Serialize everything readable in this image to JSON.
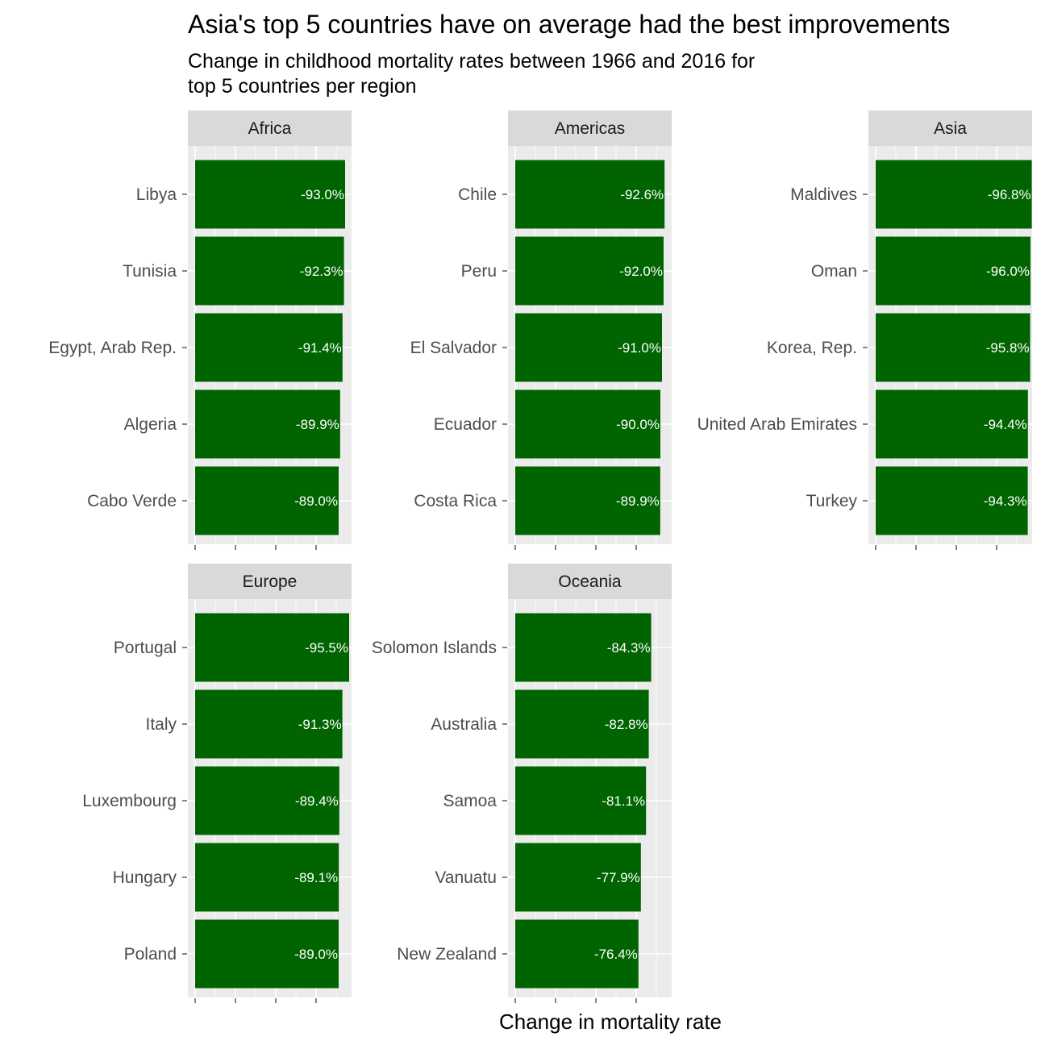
{
  "chart_data": {
    "type": "bar",
    "orientation": "horizontal",
    "title": "Asia's top 5 countries have on average had the best improvements",
    "subtitle_lines": [
      "Change in childhood mortality rates between 1966 and 2016 for",
      "top 5 countries per region"
    ],
    "xlabel": "Change in mortality rate",
    "ylabel": "",
    "bar_color": "#006400",
    "panel_background": "#EBEBEB",
    "strip_background": "#D9D9D9",
    "grid": true,
    "xlim_magnitude": [
      0,
      100
    ],
    "facets": [
      {
        "name": "Africa",
        "categories": [
          "Libya",
          "Tunisia",
          "Egypt, Arab Rep.",
          "Algeria",
          "Cabo Verde"
        ],
        "values": [
          -93.0,
          -92.3,
          -91.4,
          -89.9,
          -89.0
        ],
        "labels": [
          "-93.0%",
          "-92.3%",
          "-91.4%",
          "-89.9%",
          "-89.0%"
        ]
      },
      {
        "name": "Americas",
        "categories": [
          "Chile",
          "Peru",
          "El Salvador",
          "Ecuador",
          "Costa Rica"
        ],
        "values": [
          -92.6,
          -92.0,
          -91.0,
          -90.0,
          -89.9
        ],
        "labels": [
          "-92.6%",
          "-92.0%",
          "-91.0%",
          "-90.0%",
          "-89.9%"
        ]
      },
      {
        "name": "Asia",
        "categories": [
          "Maldives",
          "Oman",
          "Korea, Rep.",
          "United Arab Emirates",
          "Turkey"
        ],
        "values": [
          -96.8,
          -96.0,
          -95.8,
          -94.4,
          -94.3
        ],
        "labels": [
          "-96.8%",
          "-96.0%",
          "-95.8%",
          "-94.4%",
          "-94.3%"
        ]
      },
      {
        "name": "Europe",
        "categories": [
          "Portugal",
          "Italy",
          "Luxembourg",
          "Hungary",
          "Poland"
        ],
        "values": [
          -95.5,
          -91.3,
          -89.4,
          -89.1,
          -89.0
        ],
        "labels": [
          "-95.5%",
          "-91.3%",
          "-89.4%",
          "-89.1%",
          "-89.0%"
        ]
      },
      {
        "name": "Oceania",
        "categories": [
          "Solomon Islands",
          "Australia",
          "Samoa",
          "Vanuatu",
          "New Zealand"
        ],
        "values": [
          -84.3,
          -82.8,
          -81.1,
          -77.9,
          -76.4
        ],
        "labels": [
          "-84.3%",
          "-82.8%",
          "-81.1%",
          "-77.9%",
          "-76.4%"
        ]
      }
    ]
  }
}
